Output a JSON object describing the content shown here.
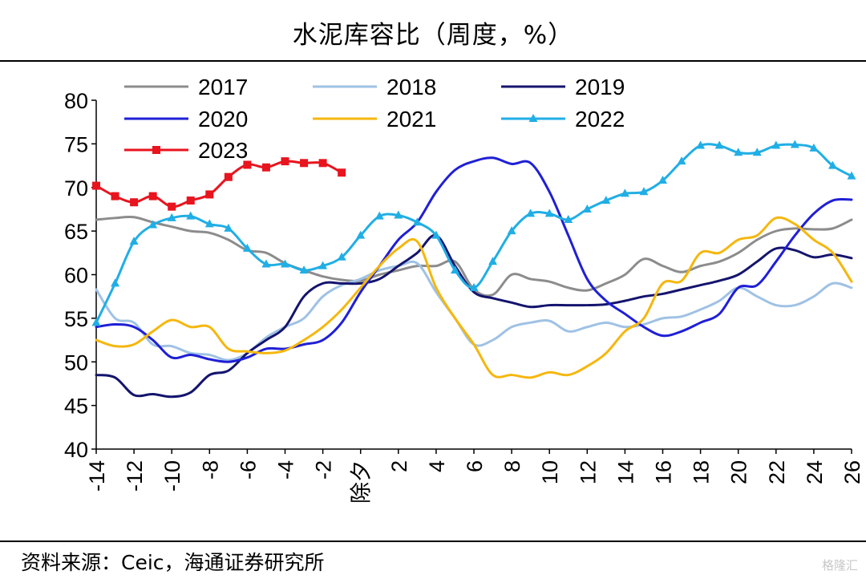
{
  "title": "水泥库容比（周度，%）",
  "source": "资料来源：Ceic，海通证券研究所",
  "watermark": "格隆汇",
  "chart_data": {
    "type": "line",
    "title": "水泥库容比（周度，%）",
    "xlabel": "",
    "ylabel": "",
    "ylim": [
      40,
      80
    ],
    "y_ticks": [
      40,
      45,
      50,
      55,
      60,
      65,
      70,
      75,
      80
    ],
    "x_range": [
      -14,
      26
    ],
    "x_ticks": [
      -14,
      -12,
      -10,
      -8,
      -6,
      -4,
      -2,
      0,
      2,
      4,
      6,
      8,
      10,
      12,
      14,
      16,
      18,
      20,
      22,
      24,
      26
    ],
    "x_tick_labels": [
      "-14",
      "-12",
      "-10",
      "-8",
      "-6",
      "-4",
      "-2",
      "除夕",
      "2",
      "4",
      "6",
      "8",
      "10",
      "12",
      "14",
      "16",
      "18",
      "20",
      "22",
      "24",
      "26"
    ],
    "grid": false,
    "legend": "top",
    "series": [
      {
        "name": "2017",
        "color": "#8c8c8c",
        "marker": "none",
        "x": [
          -14,
          -13,
          -12,
          -11,
          -10,
          -9,
          -8,
          -7,
          -6,
          -5,
          -4,
          -3,
          -2,
          -1,
          0,
          1,
          2,
          3,
          4,
          5,
          6,
          7,
          8,
          9,
          10,
          11,
          12,
          13,
          14,
          15,
          16,
          17,
          18,
          19,
          20,
          21,
          22,
          23,
          24,
          25,
          26
        ],
        "values": [
          66.3,
          66.5,
          66.6,
          66.0,
          65.5,
          65.0,
          64.8,
          64.0,
          62.8,
          62.5,
          61.3,
          60.5,
          59.8,
          59.4,
          59.3,
          60.0,
          60.5,
          61.0,
          61.0,
          61.5,
          58.3,
          57.7,
          60.0,
          59.5,
          59.2,
          58.5,
          58.2,
          59.0,
          60.0,
          61.8,
          61.0,
          60.3,
          61.0,
          61.5,
          62.5,
          64.0,
          65.0,
          65.3,
          65.2,
          65.3,
          66.3
        ]
      },
      {
        "name": "2018",
        "color": "#9fc2e4",
        "marker": "none",
        "x": [
          -14,
          -13,
          -12,
          -11,
          -10,
          -9,
          -8,
          -7,
          -6,
          -5,
          -4,
          -3,
          -2,
          -1,
          0,
          1,
          2,
          3,
          4,
          5,
          6,
          7,
          8,
          9,
          10,
          11,
          12,
          13,
          14,
          15,
          16,
          17,
          18,
          19,
          20,
          21,
          22,
          23,
          24,
          25,
          26
        ],
        "values": [
          58.3,
          55.0,
          54.5,
          52.0,
          51.8,
          51.0,
          50.8,
          50.2,
          51.0,
          52.8,
          54.0,
          55.0,
          57.5,
          58.8,
          59.5,
          60.5,
          61.0,
          61.3,
          58.0,
          55.0,
          52.0,
          52.5,
          54.0,
          54.5,
          54.7,
          53.5,
          54.0,
          54.5,
          54.0,
          54.3,
          55.0,
          55.2,
          56.0,
          57.0,
          58.5,
          57.5,
          56.5,
          56.5,
          57.5,
          59.0,
          58.5
        ]
      },
      {
        "name": "2019",
        "color": "#14146e",
        "marker": "none",
        "x": [
          -14,
          -13,
          -12,
          -11,
          -10,
          -9,
          -8,
          -7,
          -6,
          -5,
          -4,
          -3,
          -2,
          -1,
          0,
          1,
          2,
          3,
          4,
          5,
          6,
          7,
          8,
          9,
          10,
          11,
          12,
          13,
          14,
          15,
          16,
          17,
          18,
          19,
          20,
          21,
          22,
          23,
          24,
          25,
          26
        ],
        "values": [
          48.5,
          48.2,
          46.2,
          46.3,
          46.0,
          46.5,
          48.5,
          49.0,
          51.0,
          52.5,
          54.0,
          57.5,
          59.0,
          59.0,
          59.0,
          59.5,
          61.0,
          62.5,
          64.5,
          61.0,
          58.0,
          57.3,
          56.8,
          56.3,
          56.5,
          56.5,
          56.5,
          56.6,
          57.0,
          57.5,
          57.8,
          58.3,
          58.8,
          59.3,
          60.0,
          61.5,
          63.0,
          62.8,
          62.0,
          62.3,
          61.9
        ]
      },
      {
        "name": "2020",
        "color": "#1f1fd6",
        "marker": "none",
        "x": [
          -14,
          -13,
          -12,
          -11,
          -10,
          -9,
          -8,
          -7,
          -6,
          -5,
          -4,
          -3,
          -2,
          -1,
          0,
          1,
          2,
          3,
          4,
          5,
          6,
          7,
          8,
          9,
          10,
          11,
          12,
          13,
          14,
          15,
          16,
          17,
          18,
          19,
          20,
          21,
          22,
          23,
          24,
          25,
          26
        ],
        "values": [
          54.0,
          54.3,
          54.0,
          52.5,
          50.5,
          50.8,
          50.3,
          50.0,
          50.5,
          51.5,
          51.5,
          52.0,
          52.5,
          54.5,
          58.0,
          61.0,
          64.0,
          66.0,
          69.5,
          72.0,
          73.0,
          73.4,
          72.7,
          72.8,
          69.5,
          64.5,
          59.5,
          57.0,
          55.5,
          54.0,
          53.0,
          53.5,
          54.5,
          55.5,
          58.5,
          58.8,
          61.5,
          64.5,
          67.0,
          68.5,
          68.6
        ]
      },
      {
        "name": "2021",
        "color": "#f5b70e",
        "marker": "none",
        "x": [
          -14,
          -13,
          -12,
          -11,
          -10,
          -9,
          -8,
          -7,
          -6,
          -5,
          -4,
          -3,
          -2,
          -1,
          0,
          1,
          2,
          3,
          4,
          5,
          6,
          7,
          8,
          9,
          10,
          11,
          12,
          13,
          14,
          15,
          16,
          17,
          18,
          19,
          20,
          21,
          22,
          23,
          24,
          25,
          26
        ],
        "values": [
          52.5,
          51.8,
          52.0,
          53.5,
          54.8,
          54.0,
          54.0,
          51.5,
          51.2,
          51.0,
          51.3,
          52.5,
          54.0,
          56.0,
          58.5,
          61.0,
          63.0,
          63.8,
          58.5,
          55.0,
          52.0,
          48.5,
          48.5,
          48.2,
          48.8,
          48.5,
          49.5,
          51.0,
          53.5,
          55.0,
          59.0,
          59.3,
          62.5,
          62.5,
          64.0,
          64.5,
          66.5,
          65.8,
          64.0,
          62.5,
          59.2
        ]
      },
      {
        "name": "2022",
        "color": "#20aee5",
        "marker": "triangle",
        "x": [
          -14,
          -13,
          -12,
          -11,
          -10,
          -9,
          -8,
          -7,
          -6,
          -5,
          -4,
          -3,
          -2,
          -1,
          0,
          1,
          2,
          3,
          4,
          5,
          6,
          7,
          8,
          9,
          10,
          11,
          12,
          13,
          14,
          15,
          16,
          17,
          18,
          19,
          20,
          21,
          22,
          23,
          24,
          25,
          26
        ],
        "values": [
          54.5,
          59.0,
          63.8,
          65.7,
          66.5,
          66.7,
          65.8,
          65.3,
          63.0,
          61.2,
          61.2,
          60.5,
          61.0,
          62.0,
          64.5,
          66.7,
          66.8,
          66.0,
          64.5,
          60.5,
          58.5,
          61.5,
          65.0,
          67.0,
          67.0,
          66.3,
          67.5,
          68.5,
          69.3,
          69.5,
          70.8,
          73.0,
          74.8,
          74.8,
          74.0,
          74.0,
          74.8,
          74.9,
          74.5,
          72.5,
          71.3
        ]
      },
      {
        "name": "2023",
        "color": "#e8141e",
        "marker": "square",
        "x": [
          -14,
          -13,
          -12,
          -11,
          -10,
          -9,
          -8,
          -7,
          -6,
          -5,
          -4,
          -3,
          -2,
          -1
        ],
        "values": [
          70.2,
          69.0,
          68.3,
          69.0,
          67.8,
          68.5,
          69.2,
          71.2,
          72.6,
          72.3,
          73.0,
          72.8,
          72.8,
          71.7
        ]
      }
    ]
  }
}
